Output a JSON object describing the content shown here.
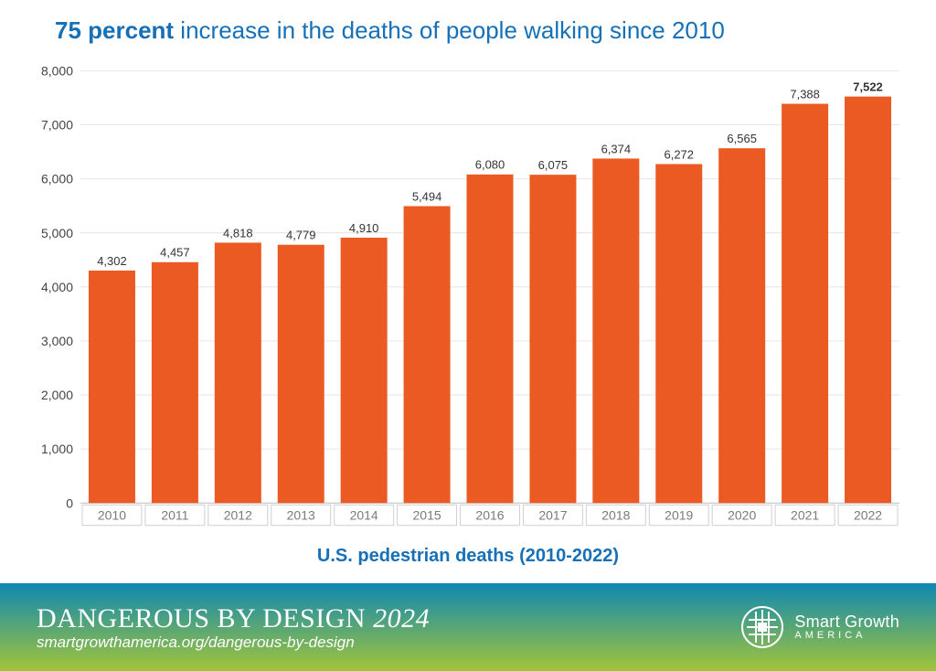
{
  "title": {
    "highlight": "75 percent",
    "rest": " increase in the deaths of people walking since 2010",
    "color": "#1670b8",
    "fontsize": 26
  },
  "subtitle": {
    "text": "U.S. pedestrian deaths (2010-2022)",
    "color": "#1670b8",
    "fontsize": 20
  },
  "chart": {
    "type": "bar",
    "categories": [
      "2010",
      "2011",
      "2012",
      "2013",
      "2014",
      "2015",
      "2016",
      "2017",
      "2018",
      "2019",
      "2020",
      "2021",
      "2022"
    ],
    "values": [
      4302,
      4457,
      4818,
      4779,
      4910,
      5494,
      6080,
      6075,
      6374,
      6272,
      6565,
      7388,
      7522
    ],
    "value_labels": [
      "4,302",
      "4,457",
      "4,818",
      "4,779",
      "4,910",
      "5,494",
      "6,080",
      "6,075",
      "6,374",
      "6,272",
      "6,565",
      "7,388",
      "7,522"
    ],
    "highlight_index": 12,
    "bar_color": "#ec5a24",
    "ylim": [
      0,
      8000
    ],
    "ytick_step": 1000,
    "ytick_labels": [
      "0",
      "1,000",
      "2,000",
      "3,000",
      "4,000",
      "5,000",
      "6,000",
      "7,000",
      "8,000"
    ],
    "background_color": "#ffffff",
    "grid_color": "#e6e6e6",
    "axis_color": "#bdbdbd",
    "tick_label_color": "#444444",
    "x_tick_label_color": "#7a7a7a",
    "bar_width_ratio": 0.74,
    "label_fontsize": 14,
    "value_label_fontsize": 13
  },
  "footer": {
    "title_main": "DANGEROUS BY DESIGN ",
    "title_year": "2024",
    "url": "smartgrowthamerica.org/dangerous-by-design",
    "gradient_start": "#0e88b2",
    "gradient_end": "#a3c43a",
    "logo": {
      "line1": "Smart Growth",
      "line2": "AMERICA"
    }
  }
}
